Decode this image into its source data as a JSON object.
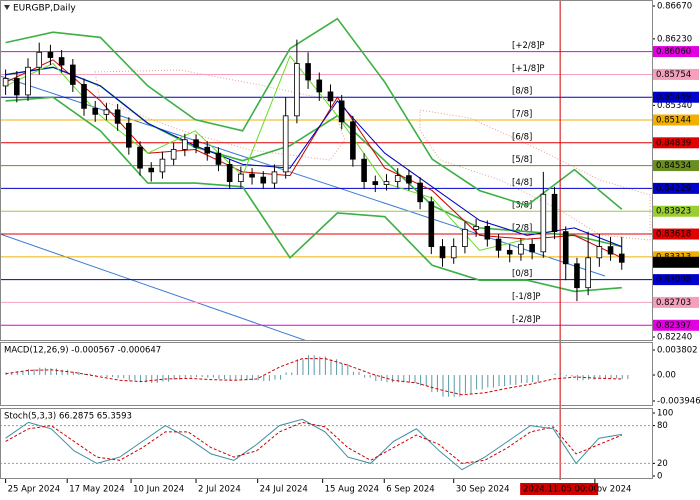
{
  "chart_data": [
    {
      "type": "candlestick",
      "title": "EURGBP,Daily",
      "open": [
        0.856,
        0.857,
        0.8548,
        0.8585,
        0.8605,
        0.8598,
        0.8588,
        0.8562,
        0.853,
        0.8522,
        0.8528,
        0.851,
        0.8478,
        0.845,
        0.8445,
        0.8462,
        0.8475,
        0.8488,
        0.8478,
        0.847,
        0.8455,
        0.8432,
        0.8442,
        0.8438,
        0.843,
        0.8445,
        0.852,
        0.859,
        0.8568,
        0.8552,
        0.854,
        0.8512,
        0.8462,
        0.8432,
        0.8428,
        0.8432,
        0.844,
        0.843,
        0.8405,
        0.8345,
        0.833,
        0.8345,
        0.8368,
        0.8372,
        0.8355,
        0.834,
        0.8335,
        0.8348,
        0.8338,
        0.8415,
        0.8365,
        0.8322,
        0.829,
        0.833,
        0.8345,
        0.8335
      ],
      "high": [
        0.8582,
        0.858,
        0.8597,
        0.8618,
        0.8615,
        0.8608,
        0.8596,
        0.857,
        0.854,
        0.8537,
        0.8536,
        0.8518,
        0.8486,
        0.8458,
        0.8472,
        0.8484,
        0.8496,
        0.8495,
        0.8486,
        0.8478,
        0.8462,
        0.8452,
        0.845,
        0.8446,
        0.8455,
        0.8545,
        0.8622,
        0.8605,
        0.8578,
        0.8562,
        0.8548,
        0.852,
        0.847,
        0.844,
        0.8442,
        0.845,
        0.8448,
        0.8438,
        0.8412,
        0.8355,
        0.8356,
        0.8378,
        0.8382,
        0.838,
        0.8362,
        0.8348,
        0.8356,
        0.8355,
        0.8445,
        0.8425,
        0.8372,
        0.833,
        0.8365,
        0.8362,
        0.8358,
        0.8358
      ],
      "low": [
        0.8548,
        0.8538,
        0.854,
        0.8575,
        0.8588,
        0.8578,
        0.8552,
        0.852,
        0.8512,
        0.8514,
        0.85,
        0.8468,
        0.844,
        0.8432,
        0.8436,
        0.8454,
        0.8466,
        0.847,
        0.846,
        0.8446,
        0.8422,
        0.8424,
        0.8428,
        0.8422,
        0.8422,
        0.8436,
        0.851,
        0.8556,
        0.854,
        0.853,
        0.8502,
        0.8452,
        0.8422,
        0.8418,
        0.842,
        0.8424,
        0.842,
        0.8395,
        0.8335,
        0.8318,
        0.8322,
        0.8336,
        0.8358,
        0.8345,
        0.833,
        0.8324,
        0.8326,
        0.8328,
        0.833,
        0.8355,
        0.83,
        0.8272,
        0.828,
        0.8318,
        0.8326,
        0.8314
      ],
      "close": [
        0.857,
        0.8548,
        0.8585,
        0.8605,
        0.8598,
        0.8588,
        0.8562,
        0.853,
        0.8522,
        0.8528,
        0.851,
        0.8478,
        0.845,
        0.8445,
        0.8462,
        0.8475,
        0.8488,
        0.8478,
        0.847,
        0.8455,
        0.8432,
        0.8442,
        0.8438,
        0.843,
        0.8445,
        0.852,
        0.859,
        0.8568,
        0.8552,
        0.854,
        0.8512,
        0.8462,
        0.8432,
        0.8428,
        0.8432,
        0.844,
        0.843,
        0.8405,
        0.8345,
        0.833,
        0.8345,
        0.8368,
        0.8372,
        0.8355,
        0.834,
        0.8335,
        0.8348,
        0.8338,
        0.8415,
        0.8365,
        0.8322,
        0.829,
        0.833,
        0.8345,
        0.8335,
        0.8324
      ],
      "series": [
        {
          "color": "#3cb043",
          "values": [
            0.8618,
            0.8632,
            0.8625,
            0.856,
            0.8515,
            0.85,
            0.861,
            0.865,
            0.8565,
            0.8462,
            0.842,
            0.84,
            0.8448,
            0.8395
          ]
        },
        {
          "color": "#3cb043",
          "values": [
            0.8575,
            0.8585,
            0.856,
            0.851,
            0.8478,
            0.846,
            0.848,
            0.852,
            0.846,
            0.84,
            0.837,
            0.8365,
            0.836,
            0.8345
          ]
        },
        {
          "color": "#3cb043",
          "values": [
            0.854,
            0.8545,
            0.85,
            0.843,
            0.843,
            0.8425,
            0.833,
            0.839,
            0.8385,
            0.832,
            0.83,
            0.83,
            0.8285,
            0.829
          ]
        },
        {
          "color": "#d00000",
          "values": [
            0.8565,
            0.8595,
            0.854,
            0.847,
            0.8475,
            0.8445,
            0.844,
            0.8545,
            0.845,
            0.842,
            0.836,
            0.8355,
            0.836,
            0.833
          ]
        },
        {
          "color": "#0000c0",
          "values": [
            0.8575,
            0.8585,
            0.856,
            0.851,
            0.848,
            0.8455,
            0.845,
            0.854,
            0.847,
            0.8425,
            0.838,
            0.836,
            0.837,
            0.8345
          ]
        },
        {
          "color": "#66dd22",
          "values": [
            0.856,
            0.859,
            0.852,
            0.847,
            0.85,
            0.844,
            0.86,
            0.852,
            0.843,
            0.841,
            0.834,
            0.8355,
            null,
            null
          ]
        }
      ],
      "levels": [
        {
          "name": "[+2/8]P",
          "value": 0.8606,
          "label": "0.86060",
          "color": "#e000e0"
        },
        {
          "name": "[+1/8]P",
          "value": 0.85754,
          "label": "0.85754",
          "color": "#f4a0bc"
        },
        {
          "name": "[8/8]",
          "value": 0.85449,
          "label": "0.85449",
          "color": "#0000cc"
        },
        {
          "name": "[7/8]",
          "value": 0.85144,
          "label": "0.85144",
          "color": "#f0b000"
        },
        {
          "name": "[6/8]",
          "value": 0.84839,
          "label": "0.84839",
          "color": "#e00000"
        },
        {
          "name": "[5/8]",
          "value": 0.84534,
          "label": "0.84534",
          "color": "#6b8e23"
        },
        {
          "name": "[4/8]",
          "value": 0.84229,
          "label": "0.84229",
          "color": "#0000cc"
        },
        {
          "name": "[3/8]",
          "value": 0.83923,
          "label": "0.83923",
          "color": "#9acd32"
        },
        {
          "name": "[2/8]",
          "value": 0.83618,
          "label": "0.83618",
          "color": "#e00000"
        },
        {
          "name": null,
          "value": 0.83313,
          "label": "0.83313",
          "color": "#f0b000"
        },
        {
          "name": "[0/8]",
          "value": 0.83008,
          "label": "0.83008",
          "color": "#0000cc"
        },
        {
          "name": "[-1/8]P",
          "value": 0.82703,
          "label": "0.82703",
          "color": "#f4a0bc"
        },
        {
          "name": "[-2/8]P",
          "value": 0.82397,
          "label": "0.82397",
          "color": "#e000e0"
        }
      ],
      "current": {
        "value": 0.8324,
        "label": "0.83240"
      },
      "ylim": [
        0.8224,
        0.8667
      ],
      "yticks": [
        {
          "value": 0.8667,
          "label": "0.86670"
        },
        {
          "value": 0.8623,
          "label": "0.86230"
        },
        {
          "value": 0.8534,
          "label": "0.85340"
        },
        {
          "value": 0.8224,
          "label": "0.82240"
        }
      ],
      "xlim": [
        -0.5,
        57.7
      ],
      "xticks": [
        {
          "value": 0,
          "label": "25 Apr 2024"
        },
        {
          "value": 5.5,
          "label": "17 May 2024"
        },
        {
          "value": 11.2,
          "label": "10 Jun 2024"
        },
        {
          "value": 17,
          "label": "2 Jul 2024"
        },
        {
          "value": 22.5,
          "label": "24 Jul 2024"
        },
        {
          "value": 28.3,
          "label": "15 Aug 2024"
        },
        {
          "value": 33.8,
          "label": "6 Sep 2024"
        },
        {
          "value": 40,
          "label": "30 Sep 2024"
        },
        {
          "value": 52.6,
          "label": "ov 2024"
        }
      ],
      "marker": {
        "value": 49.5,
        "label": "2024.11.05 00:00",
        "color": "#d00000"
      }
    },
    {
      "type": "macd",
      "title": "MACD(12,26,9) -0.000567 -0.000647",
      "values": [
        0.0004,
        0.0006,
        0.0009,
        0.0011,
        0.001,
        0.0008,
        0.0005,
        0.0002,
        -0.0001,
        -0.0003,
        -0.0005,
        -0.0008,
        -0.0011,
        -0.0012,
        -0.001,
        -0.0007,
        -0.0004,
        -0.0003,
        -0.0004,
        -0.0006,
        -0.0008,
        -0.0008,
        -0.0008,
        -0.0009,
        -0.0007,
        0.0004,
        0.0024,
        0.003,
        0.0028,
        0.0024,
        0.0017,
        0.0005,
        -0.0004,
        -0.0009,
        -0.0011,
        -0.0011,
        -0.0012,
        -0.0016,
        -0.0026,
        -0.0033,
        -0.0033,
        -0.0028,
        -0.0022,
        -0.0019,
        -0.0017,
        -0.0015,
        -0.0012,
        -0.0011,
        0.0,
        0.0002,
        -0.0002,
        -0.0008,
        -0.0007,
        -0.0005,
        -0.0005,
        -0.0006
      ],
      "color": "#5a9aa8",
      "signal": {
        "color": "#d00000",
        "values": [
          0.0002,
          0.0007,
          0.0008,
          0.0004,
          -0.0002,
          -0.0008,
          -0.001,
          -0.0006,
          -0.0005,
          -0.0007,
          -0.0008,
          -0.0006,
          0.0012,
          0.0025,
          0.0025,
          0.0015,
          0.0002,
          -0.0008,
          -0.0012,
          -0.0022,
          -0.003,
          -0.0027,
          -0.002,
          -0.0014,
          -0.0006,
          -0.0003,
          -0.0005,
          -0.0006
        ]
      },
      "ylim": [
        -0.003946,
        0.003802
      ],
      "yticks": [
        0.003802,
        {
          "value": 0,
          "label": "0.00"
        },
        -0.003946
      ]
    },
    {
      "type": "stochastic",
      "title": "Stoch(5,3,3) 66.2875 65.3593",
      "series": [
        {
          "color": "#3a8fa0",
          "values": [
            60,
            85,
            75,
            40,
            20,
            30,
            55,
            80,
            60,
            35,
            25,
            50,
            80,
            90,
            70,
            30,
            20,
            55,
            75,
            40,
            10,
            30,
            55,
            80,
            75,
            20,
            60,
            66
          ]
        },
        {
          "color": "#d00000",
          "values": [
            55,
            75,
            80,
            55,
            30,
            25,
            45,
            70,
            70,
            45,
            30,
            40,
            70,
            85,
            78,
            45,
            25,
            45,
            65,
            50,
            20,
            25,
            45,
            70,
            78,
            35,
            50,
            65
          ]
        }
      ],
      "ylim": [
        0,
        100
      ],
      "yticks": [
        100,
        80,
        20,
        0
      ],
      "levels": [
        80,
        20
      ]
    }
  ]
}
